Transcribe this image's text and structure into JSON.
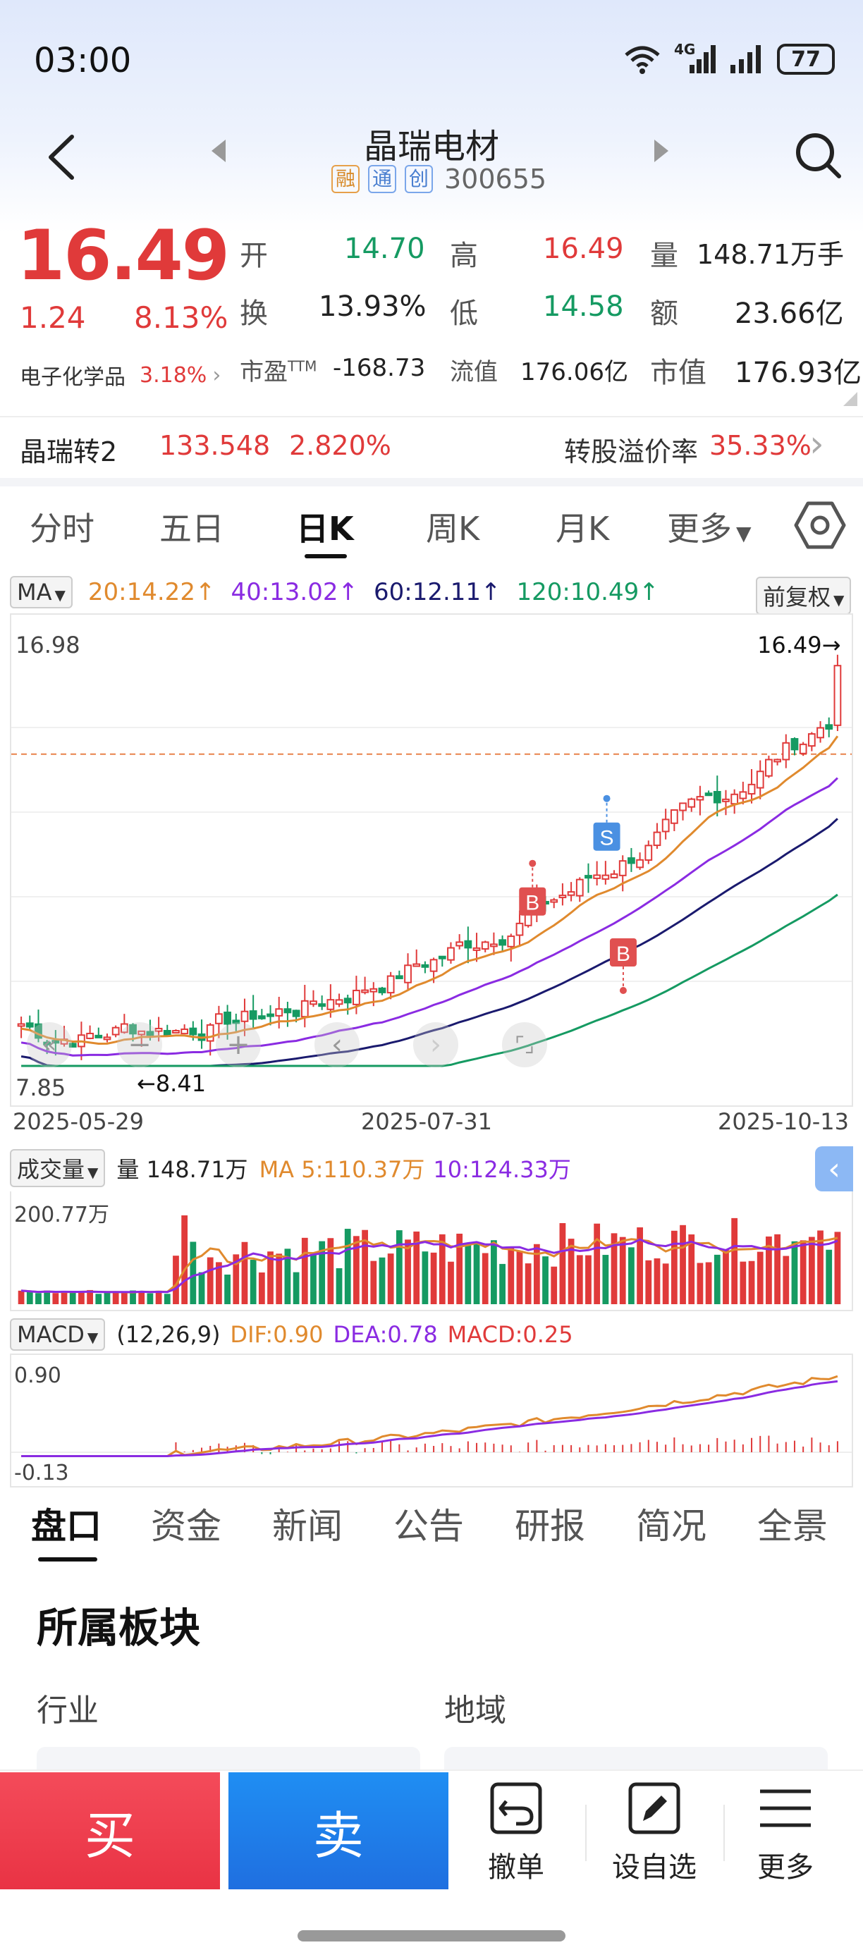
{
  "status_bar": {
    "time": "03:00",
    "network": "4G",
    "battery": "77"
  },
  "header": {
    "stock_name": "晶瑞电材",
    "tags": [
      "融",
      "通",
      "创"
    ],
    "code": "300655"
  },
  "quote": {
    "price": "16.49",
    "change": "1.24",
    "change_pct": "8.13%",
    "sector_name": "电子化学品",
    "sector_pct": "3.18%",
    "open_label": "开",
    "open": "14.70",
    "high_label": "高",
    "high": "16.49",
    "volume_label": "量",
    "volume": "148.71万手",
    "turnover_label": "换",
    "turnover": "13.93%",
    "low_label": "低",
    "low": "14.58",
    "amount_label": "额",
    "amount": "23.66亿",
    "pe_label": "市盈",
    "pe_sup": "TTM",
    "pe": "-168.73",
    "float_label": "流值",
    "float_value": "176.06亿",
    "mktcap_label": "市值",
    "mktcap": "176.93亿"
  },
  "bond": {
    "name": "晶瑞转2",
    "price": "133.548",
    "pct": "2.820%",
    "premium_label": "转股溢价率",
    "premium": "35.33%"
  },
  "period_tabs": {
    "tabs": [
      "分时",
      "五日",
      "日K",
      "周K",
      "月K"
    ],
    "more": "更多",
    "active": "日K"
  },
  "ma_bar": {
    "label": "MA",
    "ma20": "20:14.22↑",
    "ma40": "40:13.02↑",
    "ma60": "60:12.11↑",
    "ma120": "120:10.49↑",
    "adjust": "前复权"
  },
  "kline": {
    "y_max": "16.98",
    "y_min": "7.85",
    "last_label": "16.49→",
    "low_label": "←8.41",
    "dates": [
      "2025-05-29",
      "2025-07-31",
      "2025-10-13"
    ],
    "signals": [
      "S",
      "B",
      "B"
    ]
  },
  "volume_panel": {
    "label": "成交量",
    "vol": "量 148.71万",
    "ma5": "MA 5:110.37万",
    "ma10": "10:124.33万",
    "y_max": "200.77万"
  },
  "macd_panel": {
    "label": "MACD",
    "params": "(12,26,9)",
    "dif": "DIF:0.90",
    "dea": "DEA:0.78",
    "macd": "MACD:0.25",
    "y_max": "0.90",
    "y_min": "-0.13"
  },
  "bottom_tabs": {
    "tabs": [
      "盘口",
      "资金",
      "新闻",
      "公告",
      "研报",
      "简况",
      "全景"
    ],
    "active": "盘口"
  },
  "section": {
    "title": "所属板块",
    "industry": "行业",
    "region": "地域"
  },
  "actions": {
    "buy": "买",
    "sell": "卖",
    "cancel": "撤单",
    "watchlist": "设自选",
    "more": "更多"
  },
  "colors": {
    "up": "#e03a3a",
    "down": "#159a62",
    "ma20": "#e08a2e",
    "ma40": "#8a2be2",
    "ma60": "#1a1a6e",
    "ma120": "#159a62",
    "buy": "#e93344",
    "sell": "#1f6fe0"
  }
}
